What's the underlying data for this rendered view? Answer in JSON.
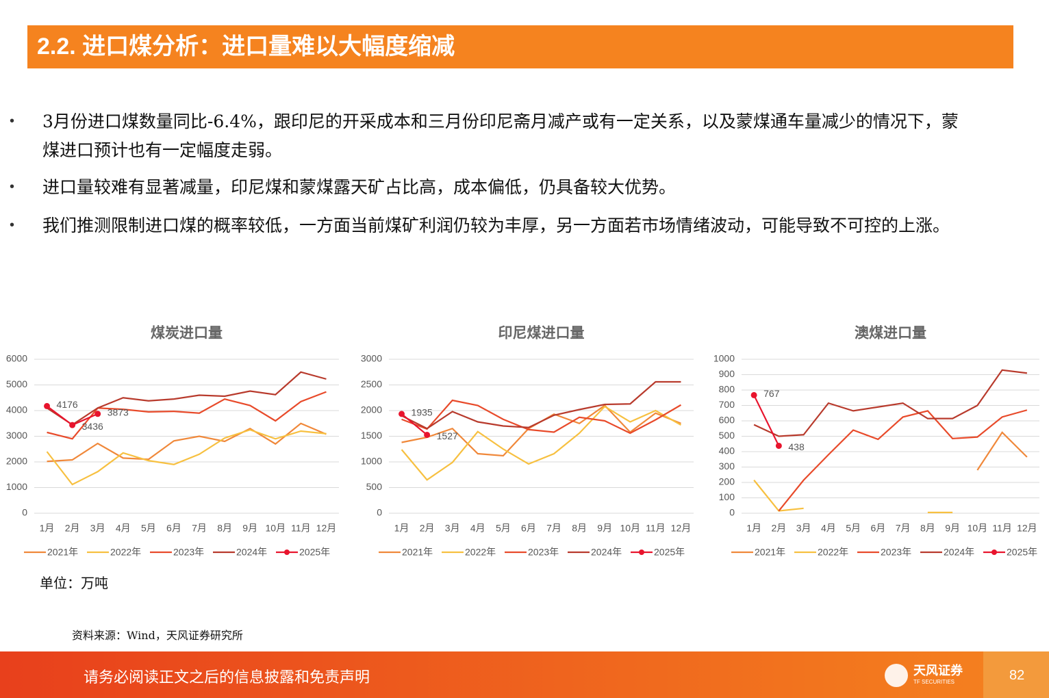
{
  "header": {
    "title": "2.2. 进口煤分析：进口量难以大幅度缩减"
  },
  "bullets": [
    "3月份进口煤数量同比-6.4%，跟印尼的开采成本和三月份印尼斋月减产或有一定关系，以及蒙煤通车量减少的情况下，蒙煤进口预计也有一定幅度走弱。",
    "进口量较难有显著减量，印尼煤和蒙煤露天矿占比高，成本偏低，仍具备较大优势。",
    "我们推测限制进口煤的概率较低，一方面当前煤矿利润仍较为丰厚，另一方面若市场情绪波动，可能导致不可控的上涨。"
  ],
  "chart_data": [
    {
      "type": "line",
      "title": "煤炭进口量",
      "categories": [
        "1月",
        "2月",
        "3月",
        "4月",
        "5月",
        "6月",
        "7月",
        "8月",
        "9月",
        "10月",
        "11月",
        "12月"
      ],
      "ylim": [
        0,
        6000
      ],
      "yticks": [
        0,
        1000,
        2000,
        3000,
        4000,
        5000,
        6000
      ],
      "grid": true,
      "series": [
        {
          "name": "2021年",
          "color": "#f0883a",
          "values": [
            2020,
            2080,
            2720,
            2150,
            2100,
            2820,
            3000,
            2800,
            3300,
            2700,
            3500,
            3080
          ]
        },
        {
          "name": "2022年",
          "color": "#f7c040",
          "values": [
            2400,
            1120,
            1620,
            2350,
            2050,
            1900,
            2300,
            2930,
            3250,
            2900,
            3200,
            3100
          ]
        },
        {
          "name": "2023年",
          "color": "#e84a2a",
          "values": [
            3150,
            2900,
            4100,
            4050,
            3950,
            3970,
            3900,
            4450,
            4200,
            3600,
            4350,
            4730
          ]
        },
        {
          "name": "2024年",
          "color": "#b83a2c",
          "values": [
            4100,
            3450,
            4100,
            4500,
            4380,
            4450,
            4600,
            4560,
            4760,
            4620,
            5500,
            5230
          ]
        },
        {
          "name": "2025年",
          "color": "#e8142d",
          "values": [
            4176,
            3436,
            3873,
            null,
            null,
            null,
            null,
            null,
            null,
            null,
            null,
            null
          ]
        }
      ]
    },
    {
      "type": "line",
      "title": "印尼煤进口量",
      "categories": [
        "1月",
        "2月",
        "3月",
        "4月",
        "5月",
        "6月",
        "7月",
        "8月",
        "9月",
        "10月",
        "11月",
        "12月"
      ],
      "ylim": [
        0,
        3000
      ],
      "yticks": [
        0,
        500,
        1000,
        1500,
        2000,
        2500,
        3000
      ],
      "grid": true,
      "series": [
        {
          "name": "2021年",
          "color": "#f0883a",
          "values": [
            1380,
            1480,
            1650,
            1160,
            1120,
            1650,
            1930,
            1750,
            2100,
            1580,
            1950,
            1750
          ]
        },
        {
          "name": "2022年",
          "color": "#f7c040",
          "values": [
            1240,
            650,
            990,
            1590,
            1250,
            960,
            1160,
            1560,
            2080,
            1780,
            2000,
            1720
          ]
        },
        {
          "name": "2023年",
          "color": "#e84a2a",
          "values": [
            1830,
            1640,
            2200,
            2100,
            1830,
            1630,
            1580,
            1870,
            1800,
            1560,
            1820,
            2110
          ]
        },
        {
          "name": "2024年",
          "color": "#b83a2c",
          "values": [
            1900,
            1650,
            1980,
            1780,
            1700,
            1670,
            1910,
            2020,
            2120,
            2130,
            2560,
            2560
          ]
        },
        {
          "name": "2025年",
          "color": "#e8142d",
          "values": [
            1935,
            1527,
            null,
            null,
            null,
            null,
            null,
            null,
            null,
            null,
            null,
            null
          ]
        }
      ]
    },
    {
      "type": "line",
      "title": "澳煤进口量",
      "categories": [
        "1月",
        "2月",
        "3月",
        "4月",
        "5月",
        "6月",
        "7月",
        "8月",
        "9月",
        "10月",
        "11月",
        "12月"
      ],
      "ylim": [
        0,
        1000
      ],
      "yticks": [
        0,
        100,
        200,
        300,
        400,
        500,
        600,
        700,
        800,
        900,
        1000
      ],
      "grid": true,
      "series": [
        {
          "name": "2021年",
          "color": "#f0883a",
          "values": [
            null,
            null,
            null,
            null,
            null,
            null,
            null,
            null,
            null,
            280,
            525,
            365
          ]
        },
        {
          "name": "2022年",
          "color": "#f7c040",
          "values": [
            215,
            15,
            32,
            null,
            null,
            null,
            null,
            5,
            5,
            null,
            null,
            null
          ]
        },
        {
          "name": "2023年",
          "color": "#e84a2a",
          "values": [
            null,
            15,
            215,
            380,
            540,
            480,
            625,
            665,
            485,
            495,
            625,
            670
          ]
        },
        {
          "name": "2024年",
          "color": "#b83a2c",
          "values": [
            575,
            500,
            510,
            715,
            665,
            690,
            715,
            615,
            615,
            700,
            930,
            910
          ]
        },
        {
          "name": "2025年",
          "color": "#e8142d",
          "values": [
            767,
            438,
            null,
            null,
            null,
            null,
            null,
            null,
            null,
            null,
            null,
            null
          ]
        }
      ]
    }
  ],
  "unit": "单位：万吨",
  "source": "资料来源：Wind，天风证券研究所",
  "footer": {
    "disclaimer": "请务必阅读正文之后的信息披露和免责声明",
    "logo": "天风证券",
    "logo_en": "TF SECURITIES",
    "page": "82"
  }
}
